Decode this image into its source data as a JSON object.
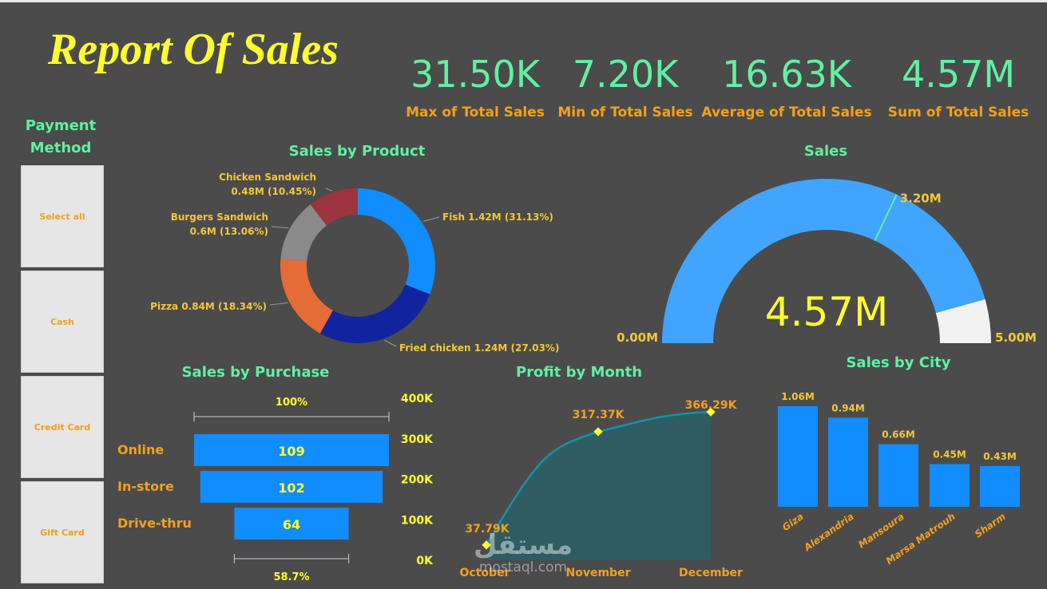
{
  "title": "Report Of Sales",
  "kpis": [
    {
      "value": "31.50K",
      "label": "Max of Total Sales"
    },
    {
      "value": "7.20K",
      "label": "Min of Total Sales"
    },
    {
      "value": "16.63K",
      "label": "Average of Total Sales"
    },
    {
      "value": "4.57M",
      "label": "Sum of Total Sales"
    }
  ],
  "slicer": {
    "title_line1": "Payment",
    "title_line2": "Method",
    "options": [
      "Select all",
      "Cash",
      "Credit Card",
      "Gift Card"
    ]
  },
  "watermark": {
    "arabic": "مستقل",
    "latin": "mostaql.com"
  },
  "colors": {
    "background": "#4b4b4b",
    "kpi_value": "#5ef2a2",
    "kpi_label": "#f3a11c",
    "title": "#ffff2e",
    "bar_blue": "#118dff",
    "gauge_fill": "#41a4ff",
    "gauge_rest": "#f2f2f2"
  },
  "chart_data": [
    {
      "type": "pie",
      "variant": "donut",
      "title": "Sales by Product",
      "slices": [
        {
          "label": "Fish",
          "value": 1.42,
          "display": "Fish 1.42M (31.13%)",
          "percent": 31.13,
          "color": "#118dff"
        },
        {
          "label": "Fried chicken",
          "value": 1.24,
          "display": "Fried chicken 1.24M (27.03%)",
          "percent": 27.03,
          "color": "#12239e"
        },
        {
          "label": "Pizza",
          "value": 0.84,
          "display": "Pizza 0.84M (18.34%)",
          "percent": 18.34,
          "color": "#e66c37"
        },
        {
          "label": "Burgers Sandwich",
          "value": 0.6,
          "display1": "Burgers Sandwich",
          "display2": "0.6M (13.06%)",
          "percent": 13.06,
          "color": "#8a8a8a"
        },
        {
          "label": "Chicken Sandwich",
          "value": 0.48,
          "display1": "Chicken Sandwich",
          "display2": "0.48M (10.45%)",
          "percent": 10.45,
          "color": "#9e3340"
        }
      ]
    },
    {
      "type": "gauge",
      "title": "Sales",
      "value": 4.57,
      "value_label": "4.57M",
      "min": 0,
      "max": 5.0,
      "min_label": "0.00M",
      "max_label": "5.00M",
      "target": 3.2,
      "target_label": "3.20M"
    },
    {
      "type": "funnel",
      "title": "Sales by Purchase",
      "categories": [
        "Online",
        "In-store",
        "Drive-thru"
      ],
      "values": [
        109,
        102,
        64
      ],
      "top_label": "100%",
      "bottom_label": "58.7%"
    },
    {
      "type": "area",
      "title": "Profit by Month",
      "x": [
        "October",
        "November",
        "December"
      ],
      "values": [
        37.79,
        317.37,
        366.29
      ],
      "data_labels": [
        "37.79K",
        "317.37K",
        "366.29K"
      ],
      "ylim": [
        0,
        400
      ],
      "yticks": [
        "0K",
        "100K",
        "200K",
        "300K",
        "400K"
      ]
    },
    {
      "type": "bar",
      "title": "Sales by City",
      "categories": [
        "Giza",
        "Alexandria",
        "Mansoura",
        "Marsa Matrouh",
        "Sharm"
      ],
      "values": [
        1.06,
        0.94,
        0.66,
        0.45,
        0.43
      ],
      "data_labels": [
        "1.06M",
        "0.94M",
        "0.66M",
        "0.45M",
        "0.43M"
      ]
    }
  ]
}
